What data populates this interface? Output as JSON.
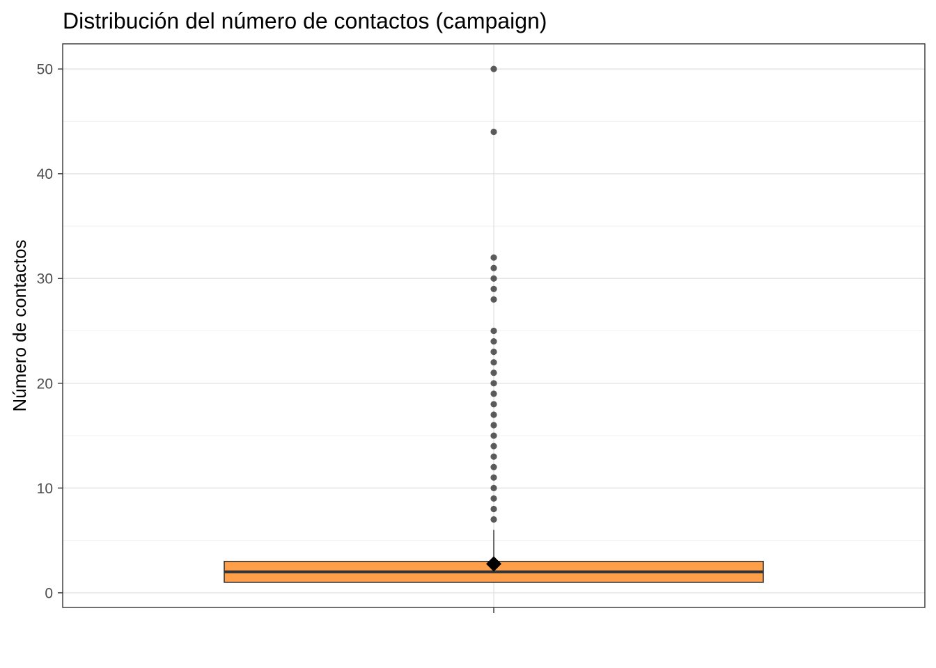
{
  "chart_data": {
    "type": "boxplot",
    "title": "Distribución del número de contactos (campaign)",
    "xlabel": "",
    "ylabel": "Número de contactos",
    "ylim": [
      -1.4,
      52.4
    ],
    "y_ticks": [
      0,
      10,
      20,
      30,
      40,
      50
    ],
    "grid": true,
    "legend": "none",
    "box": {
      "q1": 1,
      "median": 2,
      "q3": 3,
      "whisker_low": 1,
      "whisker_high": 6,
      "mean": 2.76,
      "fill_color": "#ff9f4a",
      "line_color": "#333333"
    },
    "outliers": [
      7,
      8,
      9,
      10,
      11,
      12,
      13,
      14,
      15,
      16,
      17,
      18,
      19,
      20,
      21,
      22,
      23,
      24,
      25,
      28,
      29,
      30,
      31,
      32,
      44,
      50
    ]
  }
}
